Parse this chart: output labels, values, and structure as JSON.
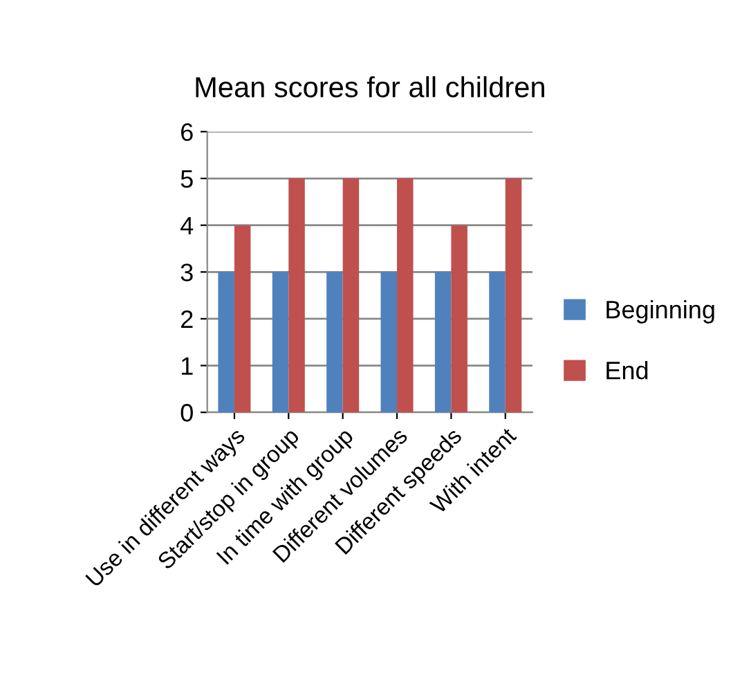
{
  "chart_data": {
    "type": "bar",
    "title": "Mean scores for all children",
    "categories": [
      "Use in different ways",
      "Start/stop in group",
      "In time with group",
      "Different volumes",
      "Different speeds",
      "With intent"
    ],
    "series": [
      {
        "name": "Beginning",
        "color": "#4f81bd",
        "values": [
          3,
          3,
          3,
          3,
          3,
          3
        ]
      },
      {
        "name": "End",
        "color": "#c0504d",
        "values": [
          4,
          5,
          5,
          5,
          4,
          5
        ]
      }
    ],
    "ylim": [
      0,
      6
    ],
    "yticks": [
      0,
      1,
      2,
      3,
      4,
      5,
      6
    ],
    "grid": "y",
    "legend": "right"
  }
}
